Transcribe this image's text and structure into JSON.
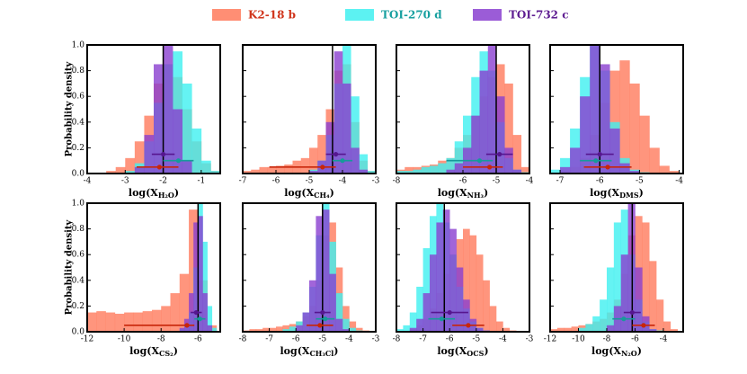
{
  "legend": [
    {
      "name": "K2-18 b",
      "color": "#ff7a5c",
      "text_color": "#d0341b",
      "marker_color": "#c8260a"
    },
    {
      "name": "TOI-270 d",
      "color": "#3ff0f0",
      "text_color": "#18a0a0",
      "marker_color": "#169a9a"
    },
    {
      "name": "TOI-732 c",
      "color": "#8a3fd0",
      "text_color": "#5e1d91",
      "marker_color": "#56168f"
    }
  ],
  "chart_data": [
    {
      "type": "histogram",
      "ylabel": "Probability density",
      "xlabel": [
        "log(X",
        "H₂O",
        ")"
      ],
      "xlim": [
        -4,
        -0.5
      ],
      "xticks": [
        -4,
        -3,
        -2,
        -1
      ],
      "ylim": [
        0,
        1.0
      ],
      "yticks": [
        {
          "value": 0,
          "label": "0.0"
        },
        {
          "value": 0.2,
          "label": "0.2"
        },
        {
          "value": 0.4,
          "label": "0.4"
        },
        {
          "value": 0.6,
          "label": "0.6"
        },
        {
          "value": 0.8,
          "label": "0.8"
        },
        {
          "value": 1.0,
          "label": "1.0"
        }
      ],
      "vline": -2.0,
      "series": [
        {
          "bins": [
            -3.5,
            -3.25,
            -3,
            -2.75,
            -2.5,
            -2.25,
            -2,
            -1.75,
            -1.5,
            -1.25,
            -1,
            -0.75,
            -0.5
          ],
          "values": [
            0.02,
            0.05,
            0.12,
            0.25,
            0.45,
            0.7,
            0.85,
            0.75,
            0.5,
            0.25,
            0.08,
            0.02
          ],
          "median": -2.1,
          "err_low": 0.6,
          "err_high": 0.5,
          "marker_y": 0.05
        },
        {
          "bins": [
            -3,
            -2.75,
            -2.5,
            -2.25,
            -2,
            -1.75,
            -1.5,
            -1.25,
            -1,
            -0.75,
            -0.5
          ],
          "values": [
            0.02,
            0.08,
            0.25,
            0.55,
            0.85,
            0.95,
            0.7,
            0.35,
            0.1,
            0.02
          ],
          "median": -1.6,
          "err_low": 0.4,
          "err_high": 0.4,
          "marker_y": 0.1
        },
        {
          "bins": [
            -2.75,
            -2.5,
            -2.25,
            -2,
            -1.75,
            -1.5,
            -1.25
          ],
          "values": [
            0.05,
            0.3,
            0.85,
            1.0,
            0.5,
            0.1
          ],
          "median": -2.0,
          "err_low": 0.3,
          "err_high": 0.3,
          "marker_y": 0.15
        }
      ]
    },
    {
      "type": "histogram",
      "xlabel": [
        "log(X",
        "CH₄",
        ")"
      ],
      "xlim": [
        -7,
        -3
      ],
      "xticks": [
        -7,
        -6,
        -5,
        -4,
        -3
      ],
      "ylim": [
        0,
        1.0
      ],
      "yticks": [
        0,
        0.2,
        0.4,
        0.6,
        0.8,
        1.0
      ],
      "vline": -4.3,
      "series": [
        {
          "bins": [
            -7,
            -6.75,
            -6.5,
            -6.25,
            -6,
            -5.75,
            -5.5,
            -5.25,
            -5,
            -4.75,
            -4.5,
            -4.25,
            -4,
            -3.75,
            -3.5,
            -3.25,
            -3
          ],
          "values": [
            0.02,
            0.03,
            0.05,
            0.05,
            0.06,
            0.07,
            0.1,
            0.12,
            0.2,
            0.3,
            0.5,
            0.8,
            0.85,
            0.4,
            0.1,
            0.02
          ],
          "median": -4.6,
          "err_low": 1.6,
          "err_high": 0.4,
          "marker_y": 0.05
        },
        {
          "bins": [
            -5,
            -4.75,
            -4.5,
            -4.25,
            -4,
            -3.75,
            -3.5,
            -3.25,
            -3
          ],
          "values": [
            0.03,
            0.1,
            0.3,
            0.7,
            1.0,
            0.6,
            0.15,
            0.02
          ],
          "median": -4.0,
          "err_low": 0.3,
          "err_high": 0.3,
          "marker_y": 0.1
        },
        {
          "bins": [
            -5,
            -4.75,
            -4.5,
            -4.25,
            -4,
            -3.75,
            -3.5,
            -3.25
          ],
          "values": [
            0.02,
            0.1,
            0.4,
            0.95,
            0.7,
            0.2,
            0.03
          ],
          "median": -4.2,
          "err_low": 0.3,
          "err_high": 0.3,
          "marker_y": 0.15
        }
      ]
    },
    {
      "type": "histogram",
      "xlabel": [
        "log(X",
        "NH₃",
        ")"
      ],
      "xlim": [
        -8,
        -4
      ],
      "xticks": [
        -8,
        -6,
        -5,
        -4
      ],
      "ylim": [
        0,
        1.0
      ],
      "yticks": [
        0,
        0.2,
        0.4,
        0.6,
        0.8,
        1.0
      ],
      "vline": -5.0,
      "series": [
        {
          "bins": [
            -8,
            -7.75,
            -7.5,
            -7.25,
            -7,
            -6.75,
            -6.5,
            -6.25,
            -6,
            -5.75,
            -5.5,
            -5.25,
            -5,
            -4.75,
            -4.5,
            -4.25,
            -4
          ],
          "values": [
            0.03,
            0.05,
            0.05,
            0.06,
            0.07,
            0.1,
            0.12,
            0.2,
            0.3,
            0.45,
            0.6,
            0.75,
            0.85,
            0.7,
            0.3,
            0.05
          ],
          "median": -5.2,
          "err_low": 0.8,
          "err_high": 0.4,
          "marker_y": 0.05
        },
        {
          "bins": [
            -8,
            -7.75,
            -7.5,
            -7.25,
            -7,
            -6.75,
            -6.5,
            -6.25,
            -6,
            -5.75,
            -5.5,
            -5.25,
            -5,
            -4.75,
            -4.5,
            -4.25,
            -4
          ],
          "values": [
            0.02,
            0.02,
            0.03,
            0.05,
            0.06,
            0.08,
            0.12,
            0.25,
            0.45,
            0.75,
            0.95,
            0.8,
            0.4,
            0.12,
            0.03,
            0.01
          ],
          "median": -5.5,
          "err_low": 1.0,
          "err_high": 0.4,
          "marker_y": 0.1
        },
        {
          "bins": [
            -6.5,
            -6.25,
            -6,
            -5.75,
            -5.5,
            -5.25,
            -5,
            -4.75,
            -4.5,
            -4.25
          ],
          "values": [
            0.03,
            0.08,
            0.2,
            0.45,
            0.8,
            1.0,
            0.6,
            0.2,
            0.03
          ],
          "median": -4.9,
          "err_low": 0.4,
          "err_high": 0.4,
          "marker_y": 0.15
        }
      ]
    },
    {
      "type": "histogram",
      "xlabel": [
        "log(X",
        "DMS",
        ")"
      ],
      "xlim": [
        -7.25,
        -3.9
      ],
      "xticks": [
        -7,
        -6,
        -5,
        -4
      ],
      "ylim": [
        0,
        1.0
      ],
      "yticks": [
        0,
        0.2,
        0.4,
        0.6,
        0.8,
        1.0
      ],
      "vline": -6.0,
      "series": [
        {
          "bins": [
            -7,
            -6.75,
            -6.5,
            -6.25,
            -6,
            -5.75,
            -5.5,
            -5.25,
            -5,
            -4.75,
            -4.5,
            -4.25,
            -4
          ],
          "values": [
            0.02,
            0.05,
            0.12,
            0.3,
            0.55,
            0.8,
            0.88,
            0.7,
            0.45,
            0.2,
            0.06,
            0.02
          ],
          "median": -5.8,
          "err_low": 0.6,
          "err_high": 0.6,
          "marker_y": 0.05
        },
        {
          "bins": [
            -7.25,
            -7,
            -6.75,
            -6.5,
            -6.25,
            -6,
            -5.75,
            -5.5,
            -5.25,
            -5,
            -4.75
          ],
          "values": [
            0.03,
            0.12,
            0.35,
            0.75,
            1.0,
            0.8,
            0.4,
            0.12,
            0.03,
            0.01
          ],
          "median": -6.1,
          "err_low": 0.4,
          "err_high": 0.4,
          "marker_y": 0.1
        },
        {
          "bins": [
            -7,
            -6.75,
            -6.5,
            -6.25,
            -6,
            -5.75,
            -5.5,
            -5.25,
            -5
          ],
          "values": [
            0.05,
            0.2,
            0.6,
            1.0,
            0.85,
            0.35,
            0.08,
            0.02
          ],
          "median": -6.0,
          "err_low": 0.35,
          "err_high": 0.35,
          "marker_y": 0.15
        }
      ]
    },
    {
      "type": "histogram",
      "ylabel": "Probability density",
      "xlabel": [
        "log(X",
        "CS₂",
        ")"
      ],
      "xlim": [
        -12,
        -4.8
      ],
      "xticks": [
        -12,
        -10,
        -8,
        -6
      ],
      "ylim": [
        0,
        1.0
      ],
      "yticks": [
        {
          "value": 0,
          "label": "0.0"
        },
        {
          "value": 0.2,
          "label": "0.2"
        },
        {
          "value": 0.4,
          "label": "0.4"
        },
        {
          "value": 0.6,
          "label": "0.6"
        },
        {
          "value": 0.8,
          "label": "0.8"
        },
        {
          "value": 1.0,
          "label": "1.0"
        }
      ],
      "vline": -6.0,
      "series": [
        {
          "bins": [
            -12,
            -11.5,
            -11,
            -10.5,
            -10,
            -9.5,
            -9,
            -8.5,
            -8,
            -7.5,
            -7,
            -6.5,
            -6,
            -5.5,
            -5
          ],
          "values": [
            0.15,
            0.16,
            0.15,
            0.14,
            0.15,
            0.15,
            0.16,
            0.17,
            0.2,
            0.3,
            0.45,
            0.95,
            0.4,
            0.05
          ],
          "median": -6.6,
          "err_low": 3.4,
          "err_high": 0.4,
          "marker_y": 0.05
        },
        {
          "bins": [
            -7,
            -6.75,
            -6.5,
            -6.25,
            -6,
            -5.75,
            -5.5,
            -5.25,
            -5
          ],
          "values": [
            0.02,
            0.05,
            0.15,
            0.5,
            1.0,
            0.7,
            0.2,
            0.03
          ],
          "median": -5.9,
          "err_low": 0.3,
          "err_high": 0.3,
          "marker_y": 0.1
        },
        {
          "bins": [
            -7,
            -6.75,
            -6.5,
            -6.25,
            -6,
            -5.75,
            -5.5,
            -5.25
          ],
          "values": [
            0.03,
            0.1,
            0.3,
            0.85,
            0.9,
            0.3,
            0.05
          ],
          "median": -6.1,
          "err_low": 0.3,
          "err_high": 0.3,
          "marker_y": 0.15
        }
      ]
    },
    {
      "type": "histogram",
      "xlabel": [
        "log(X",
        "CH₃Cl",
        ")"
      ],
      "xlim": [
        -8,
        -3
      ],
      "xticks": [
        -8,
        -7,
        -6,
        -5,
        -4,
        -3
      ],
      "ylim": [
        0,
        1.0
      ],
      "yticks": [
        0,
        0.2,
        0.4,
        0.6,
        0.8,
        1.0
      ],
      "vline": -5.0,
      "series": [
        {
          "bins": [
            -8,
            -7.75,
            -7.5,
            -7.25,
            -7,
            -6.75,
            -6.5,
            -6.25,
            -6,
            -5.75,
            -5.5,
            -5.25,
            -5,
            -4.75,
            -4.5,
            -4.25,
            -4,
            -3.75,
            -3.5,
            -3.25
          ],
          "values": [
            0.01,
            0.02,
            0.02,
            0.03,
            0.03,
            0.04,
            0.05,
            0.06,
            0.08,
            0.12,
            0.2,
            0.4,
            0.75,
            0.85,
            0.5,
            0.2,
            0.08,
            0.03,
            0.01
          ],
          "median": -5.1,
          "err_low": 0.5,
          "err_high": 0.5,
          "marker_y": 0.05
        },
        {
          "bins": [
            -6.5,
            -6.25,
            -6,
            -5.75,
            -5.5,
            -5.25,
            -5,
            -4.75,
            -4.5,
            -4.25,
            -4,
            -3.75,
            -3.5
          ],
          "values": [
            0.02,
            0.04,
            0.08,
            0.15,
            0.35,
            0.75,
            1.0,
            0.7,
            0.3,
            0.1,
            0.03,
            0.01
          ],
          "median": -4.9,
          "err_low": 0.35,
          "err_high": 0.35,
          "marker_y": 0.1
        },
        {
          "bins": [
            -6,
            -5.75,
            -5.5,
            -5.25,
            -5,
            -4.75,
            -4.5,
            -4.25,
            -4
          ],
          "values": [
            0.05,
            0.15,
            0.4,
            0.9,
            0.95,
            0.45,
            0.1,
            0.02
          ],
          "median": -5.0,
          "err_low": 0.3,
          "err_high": 0.3,
          "marker_y": 0.15
        }
      ]
    },
    {
      "type": "histogram",
      "xlabel": [
        "log(X",
        "OCS",
        ")"
      ],
      "xlim": [
        -8,
        -3
      ],
      "xticks": [
        -8,
        -7,
        -6,
        -5,
        -4,
        -3
      ],
      "ylim": [
        0,
        1.0
      ],
      "yticks": [
        0,
        0.2,
        0.4,
        0.6,
        0.8,
        1.0
      ],
      "vline": -6.2,
      "series": [
        {
          "bins": [
            -7.5,
            -7.25,
            -7,
            -6.75,
            -6.5,
            -6.25,
            -6,
            -5.75,
            -5.5,
            -5.25,
            -5,
            -4.75,
            -4.5,
            -4.25,
            -4,
            -3.75,
            -3.5
          ],
          "values": [
            0.02,
            0.05,
            0.1,
            0.18,
            0.3,
            0.45,
            0.6,
            0.72,
            0.8,
            0.75,
            0.6,
            0.4,
            0.2,
            0.08,
            0.03,
            0.01
          ],
          "median": -5.3,
          "err_low": 0.6,
          "err_high": 0.6,
          "marker_y": 0.05
        },
        {
          "bins": [
            -8,
            -7.75,
            -7.5,
            -7.25,
            -7,
            -6.75,
            -6.5,
            -6.25,
            -6,
            -5.75,
            -5.5,
            -5.25,
            -5,
            -4.75,
            -4.5
          ],
          "values": [
            0.02,
            0.05,
            0.15,
            0.35,
            0.65,
            0.9,
            1.0,
            0.85,
            0.6,
            0.35,
            0.18,
            0.08,
            0.03,
            0.01
          ],
          "median": -6.3,
          "err_low": 0.5,
          "err_high": 0.5,
          "marker_y": 0.1
        },
        {
          "bins": [
            -7.5,
            -7.25,
            -7,
            -6.75,
            -6.5,
            -6.25,
            -6,
            -5.75,
            -5.5,
            -5.25,
            -5,
            -4.75,
            -4.5
          ],
          "values": [
            0.03,
            0.1,
            0.3,
            0.6,
            0.85,
            0.95,
            0.8,
            0.5,
            0.25,
            0.1,
            0.03,
            0.01
          ],
          "median": -6.0,
          "err_low": 0.7,
          "err_high": 0.7,
          "marker_y": 0.15
        }
      ]
    },
    {
      "type": "histogram",
      "xlabel": [
        "log(X",
        "N₂O",
        ")"
      ],
      "xlim": [
        -12,
        -2.6
      ],
      "xticks": [
        -12,
        -10,
        -8,
        -6,
        -4
      ],
      "ylim": [
        0,
        1.0
      ],
      "yticks": [
        0,
        0.2,
        0.4,
        0.6,
        0.8,
        1.0
      ],
      "vline": -6.2,
      "series": [
        {
          "bins": [
            -12,
            -11.5,
            -11,
            -10.5,
            -10,
            -9.5,
            -9,
            -8.5,
            -8,
            -7.5,
            -7,
            -6.5,
            -6,
            -5.5,
            -5,
            -4.5,
            -4,
            -3.5,
            -3
          ],
          "values": [
            0.02,
            0.03,
            0.03,
            0.04,
            0.05,
            0.06,
            0.08,
            0.1,
            0.15,
            0.25,
            0.45,
            0.75,
            0.9,
            0.85,
            0.55,
            0.25,
            0.08,
            0.02
          ],
          "median": -5.4,
          "err_low": 0.8,
          "err_high": 0.8,
          "marker_y": 0.05
        },
        {
          "bins": [
            -10,
            -9.5,
            -9,
            -8.5,
            -8,
            -7.5,
            -7,
            -6.5,
            -6,
            -5.5,
            -5,
            -4.5,
            -4
          ],
          "values": [
            0.03,
            0.06,
            0.12,
            0.25,
            0.5,
            0.85,
            0.95,
            0.6,
            0.25,
            0.08,
            0.02,
            0.01
          ],
          "median": -6.8,
          "err_low": 0.8,
          "err_high": 0.8,
          "marker_y": 0.1
        },
        {
          "bins": [
            -8,
            -7.5,
            -7,
            -6.5,
            -6,
            -5.5,
            -5,
            -4.5
          ],
          "values": [
            0.05,
            0.2,
            0.6,
            1.0,
            0.5,
            0.12,
            0.02
          ],
          "median": -6.2,
          "err_low": 0.6,
          "err_high": 0.6,
          "marker_y": 0.15
        }
      ]
    }
  ]
}
